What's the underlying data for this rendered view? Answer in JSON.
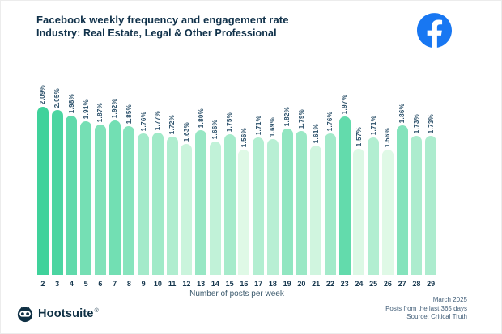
{
  "header": {
    "title": "Facebook weekly frequency and engagement rate",
    "subtitle": "Industry: Real Estate, Legal & Other Professional"
  },
  "brand": {
    "facebook_blue": "#1877F2",
    "navy": "#0f3044"
  },
  "chart_data": {
    "type": "bar",
    "title": "Facebook weekly frequency and engagement rate",
    "subtitle": "Industry: Real Estate, Legal & Other Professional",
    "categories": [
      "2",
      "3",
      "4",
      "5",
      "6",
      "7",
      "8",
      "9",
      "10",
      "11",
      "12",
      "13",
      "14",
      "15",
      "16",
      "17",
      "18",
      "19",
      "20",
      "21",
      "22",
      "23",
      "24",
      "25",
      "26",
      "27",
      "28",
      "29"
    ],
    "values": [
      2.09,
      2.05,
      1.98,
      1.91,
      1.87,
      1.92,
      1.85,
      1.76,
      1.77,
      1.72,
      1.63,
      1.8,
      1.66,
      1.75,
      1.56,
      1.71,
      1.69,
      1.82,
      1.79,
      1.61,
      1.76,
      1.97,
      1.57,
      1.71,
      1.56,
      1.86,
      1.73,
      1.73
    ],
    "label_suffix": "%",
    "xlabel": "Number of posts per week",
    "ylabel": "",
    "ylim": [
      0,
      2.09
    ],
    "grid": false,
    "legend": "none",
    "color_scale": {
      "min_value": 1.56,
      "max_value": 2.09,
      "min_color": "#dff9e6",
      "max_color": "#3fd29b"
    }
  },
  "footer": {
    "brand_name": "Hootsuite",
    "registered_mark": "®",
    "lines": [
      "March 2025",
      "Posts from the last 365 days",
      "Source: Critical Truth"
    ]
  }
}
